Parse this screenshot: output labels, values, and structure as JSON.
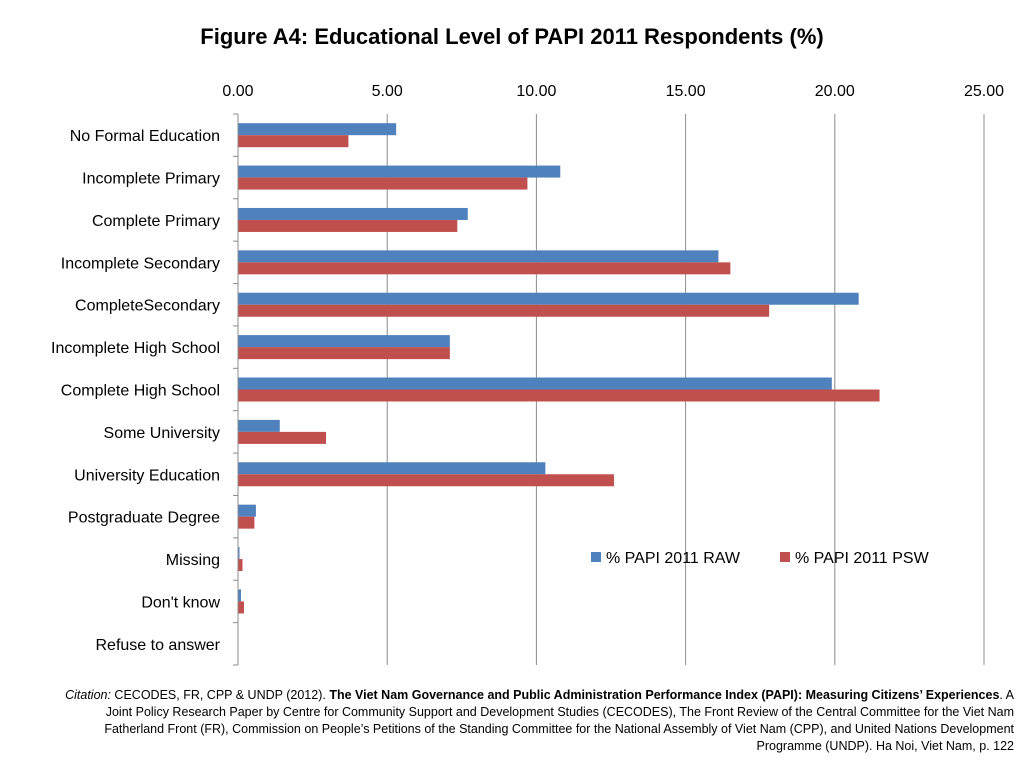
{
  "chart_data": {
    "type": "bar",
    "orientation": "horizontal",
    "title": "Figure A4: Educational Level of PAPI 2011 Respondents (%)",
    "categories": [
      "No Formal Education",
      "Incomplete Primary",
      "Complete Primary",
      "Incomplete Secondary",
      "CompleteSecondary",
      "Incomplete High School",
      "Complete High School",
      "Some University",
      "University Education",
      "Postgraduate Degree",
      "Missing",
      "Don't know",
      "Refuse to answer"
    ],
    "series": [
      {
        "name": "% PAPI 2011 RAW",
        "color": "#4f81bd",
        "values": [
          5.3,
          10.8,
          7.7,
          16.1,
          20.8,
          7.1,
          19.9,
          1.4,
          10.3,
          0.6,
          0.05,
          0.1,
          0.0
        ]
      },
      {
        "name": "% PAPI 2011 PSW",
        "color": "#c0504d",
        "values": [
          3.7,
          9.7,
          7.35,
          16.5,
          17.8,
          7.1,
          21.5,
          2.95,
          12.6,
          0.55,
          0.15,
          0.2,
          0.0
        ]
      }
    ],
    "xlim": [
      0,
      25
    ],
    "xticks": [
      "0.00",
      "5.00",
      "10.00",
      "15.00",
      "20.00",
      "25.00"
    ],
    "x_axis_position": "top",
    "grid": "vertical",
    "legend_position": "right"
  },
  "citation": {
    "label": "Citation:",
    "authors": " CECODES, FR, CPP & UNDP (2012). ",
    "title": "The Viet Nam Governance and Public Administration Performance Index (PAPI): Measuring Citizens’ Experiences",
    "rest": ". A Joint Policy Research Paper by Centre for Community Support and Development Studies (CECODES), The Front Review of the Central Committee for the Viet Nam Fatherland Front (FR), Commission on People’s Petitions of the Standing Committee for the National Assembly of Viet Nam (CPP), and United Nations Development Programme (UNDP). Ha Noi, Viet Nam, p. 122"
  }
}
